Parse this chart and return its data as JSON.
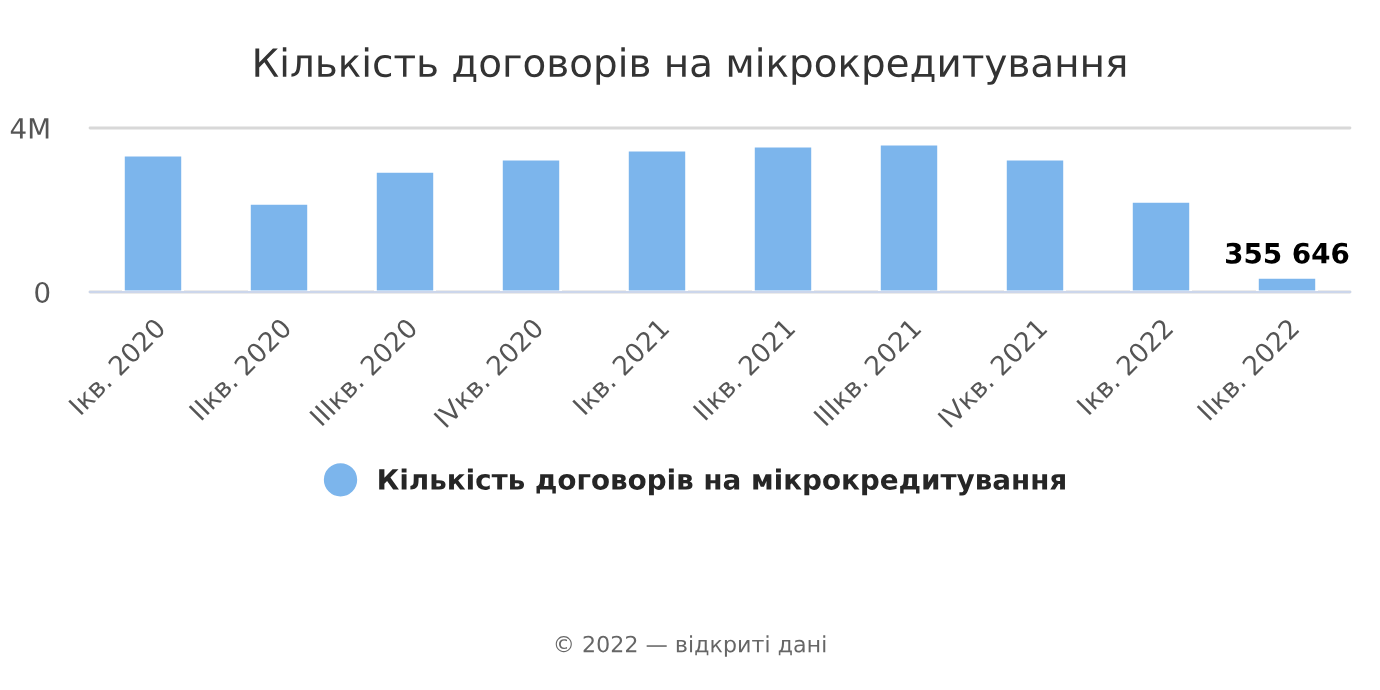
{
  "chart_data": {
    "type": "bar",
    "title": "Кількість договорів на мікрокредитування",
    "categories": [
      "Iкв. 2020",
      "IIкв. 2020",
      "IIIкв. 2020",
      "IVкв. 2020",
      "Iкв. 2021",
      "IIкв. 2021",
      "IIIкв. 2021",
      "IVкв. 2021",
      "Iкв. 2022",
      "IIкв. 2022"
    ],
    "series": [
      {
        "name": "Кількість договорів на мікрокредитування",
        "color": "#7cb5ec",
        "values": [
          3340000,
          2160000,
          2940000,
          3240000,
          3460000,
          3560000,
          3610000,
          3240000,
          2210000,
          355646
        ],
        "value_labels": [
          null,
          null,
          null,
          null,
          null,
          null,
          null,
          null,
          null,
          "355 646"
        ]
      }
    ],
    "ylim": [
      0,
      4000000
    ],
    "yticks": [
      0,
      {
        "value": 4000000,
        "label": "4M"
      }
    ],
    "grid": "y",
    "legend": "bottom",
    "annotations": [
      "© 2022 — відкриті дані"
    ]
  }
}
